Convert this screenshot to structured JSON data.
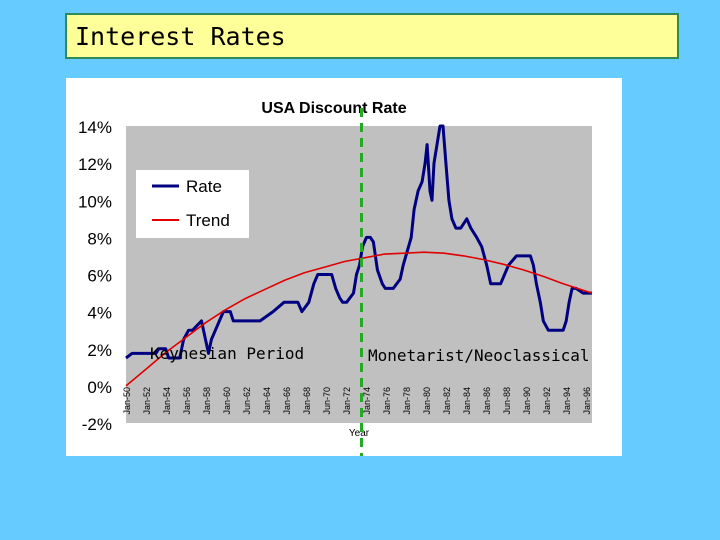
{
  "slide": {
    "title": "Interest Rates"
  },
  "annotations": {
    "left": "Keynesian Period",
    "right": "Monetarist/Neoclassical"
  },
  "colors": {
    "background": "#66ccff",
    "title_fill": "#ffff99",
    "rate": "#000080",
    "trend": "#e00000",
    "divider": "#22aa22",
    "plot_bg": "#c0c0c0"
  },
  "chart_data": {
    "type": "line",
    "title": "USA Discount Rate",
    "xlabel": "Year",
    "ylabel": "",
    "ylim": [
      -2,
      14
    ],
    "xlim": [
      1950,
      1996.9
    ],
    "yticks": [
      -2,
      0,
      2,
      4,
      6,
      8,
      10,
      12,
      14
    ],
    "ytick_labels": [
      "-2%",
      "0%",
      "2%",
      "4%",
      "6%",
      "8%",
      "10%",
      "12%",
      "14%"
    ],
    "xtick_labels": [
      "Jan-50",
      "Jan-52",
      "Jan-54",
      "Jan-56",
      "Jan-58",
      "Jan-60",
      "Jun-62",
      "Jan-64",
      "Jan-66",
      "Jan-68",
      "Jun-70",
      "Jan-72",
      "Jan-74",
      "Jan-76",
      "Jan-78",
      "Jan-80",
      "Jan-82",
      "Jan-84",
      "Jan-86",
      "Jun-88",
      "Jan-90",
      "Jan-92",
      "Jan-94",
      "Jan-96"
    ],
    "grid": false,
    "legend": {
      "position": "top-left",
      "entries": [
        "Rate",
        "Trend"
      ]
    },
    "divider_x": 1973.7,
    "series": [
      {
        "name": "Rate",
        "x": [
          1950,
          1950.6,
          1953,
          1953.3,
          1954,
          1954.3,
          1955.4,
          1955.8,
          1956.3,
          1956.7,
          1957.6,
          1957.9,
          1958.3,
          1958.6,
          1959,
          1959.4,
          1959.8,
          1960.5,
          1960.8,
          1963.5,
          1964.8,
          1965.9,
          1967.3,
          1967.7,
          1968.4,
          1968.9,
          1969.3,
          1970.7,
          1971.1,
          1971.5,
          1971.8,
          1972.2,
          1972.9,
          1973.2,
          1973.5,
          1973.8,
          1974.2,
          1974.6,
          1974.9,
          1975.3,
          1975.8,
          1976.1,
          1976.9,
          1977.6,
          1977.9,
          1978.3,
          1978.7,
          1979.0,
          1979.4,
          1979.8,
          1980.1,
          1980.3,
          1980.6,
          1980.8,
          1981.0,
          1981.3,
          1981.6,
          1981.9,
          1982.2,
          1982.5,
          1982.8,
          1983.2,
          1983.7,
          1984.3,
          1984.7,
          1985.3,
          1985.8,
          1986.3,
          1986.7,
          1987.7,
          1988.5,
          1989.3,
          1990.7,
          1991.0,
          1991.3,
          1991.7,
          1992.0,
          1992.5,
          1993.0,
          1994.0,
          1994.3,
          1994.6,
          1994.9,
          1995.3,
          1996.0,
          1996.9
        ],
        "y": [
          1.5,
          1.75,
          1.75,
          2,
          2,
          1.5,
          1.5,
          2.5,
          3,
          3,
          3.5,
          2.75,
          1.75,
          2.5,
          3,
          3.5,
          4,
          4,
          3.5,
          3.5,
          4,
          4.5,
          4.5,
          4,
          4.5,
          5.5,
          6,
          6,
          5.25,
          4.75,
          4.5,
          4.5,
          5,
          6,
          6.5,
          7.5,
          8,
          8,
          7.75,
          6.25,
          5.5,
          5.25,
          5.25,
          5.75,
          6.5,
          7.25,
          8,
          9.5,
          10.5,
          11,
          12,
          13,
          10.5,
          10,
          12,
          13,
          14,
          14,
          12,
          10,
          9,
          8.5,
          8.5,
          9,
          8.5,
          8,
          7.5,
          6.5,
          5.5,
          5.5,
          6.5,
          7,
          7,
          6.5,
          5.5,
          4.5,
          3.5,
          3,
          3,
          3,
          3.5,
          4.5,
          5.25,
          5.25,
          5,
          5
        ]
      },
      {
        "name": "Trend",
        "x": [
          1950,
          1952,
          1954,
          1956,
          1958,
          1960,
          1962,
          1964,
          1966,
          1968,
          1970,
          1972,
          1974,
          1976,
          1978,
          1980,
          1982,
          1984,
          1986,
          1988,
          1990,
          1992,
          1994,
          1996.9
        ],
        "y": [
          0,
          0.9,
          1.8,
          2.6,
          3.4,
          4.1,
          4.7,
          5.2,
          5.7,
          6.1,
          6.4,
          6.7,
          6.9,
          7.1,
          7.15,
          7.2,
          7.15,
          7.0,
          6.8,
          6.55,
          6.25,
          5.9,
          5.5,
          5.0
        ]
      }
    ]
  }
}
